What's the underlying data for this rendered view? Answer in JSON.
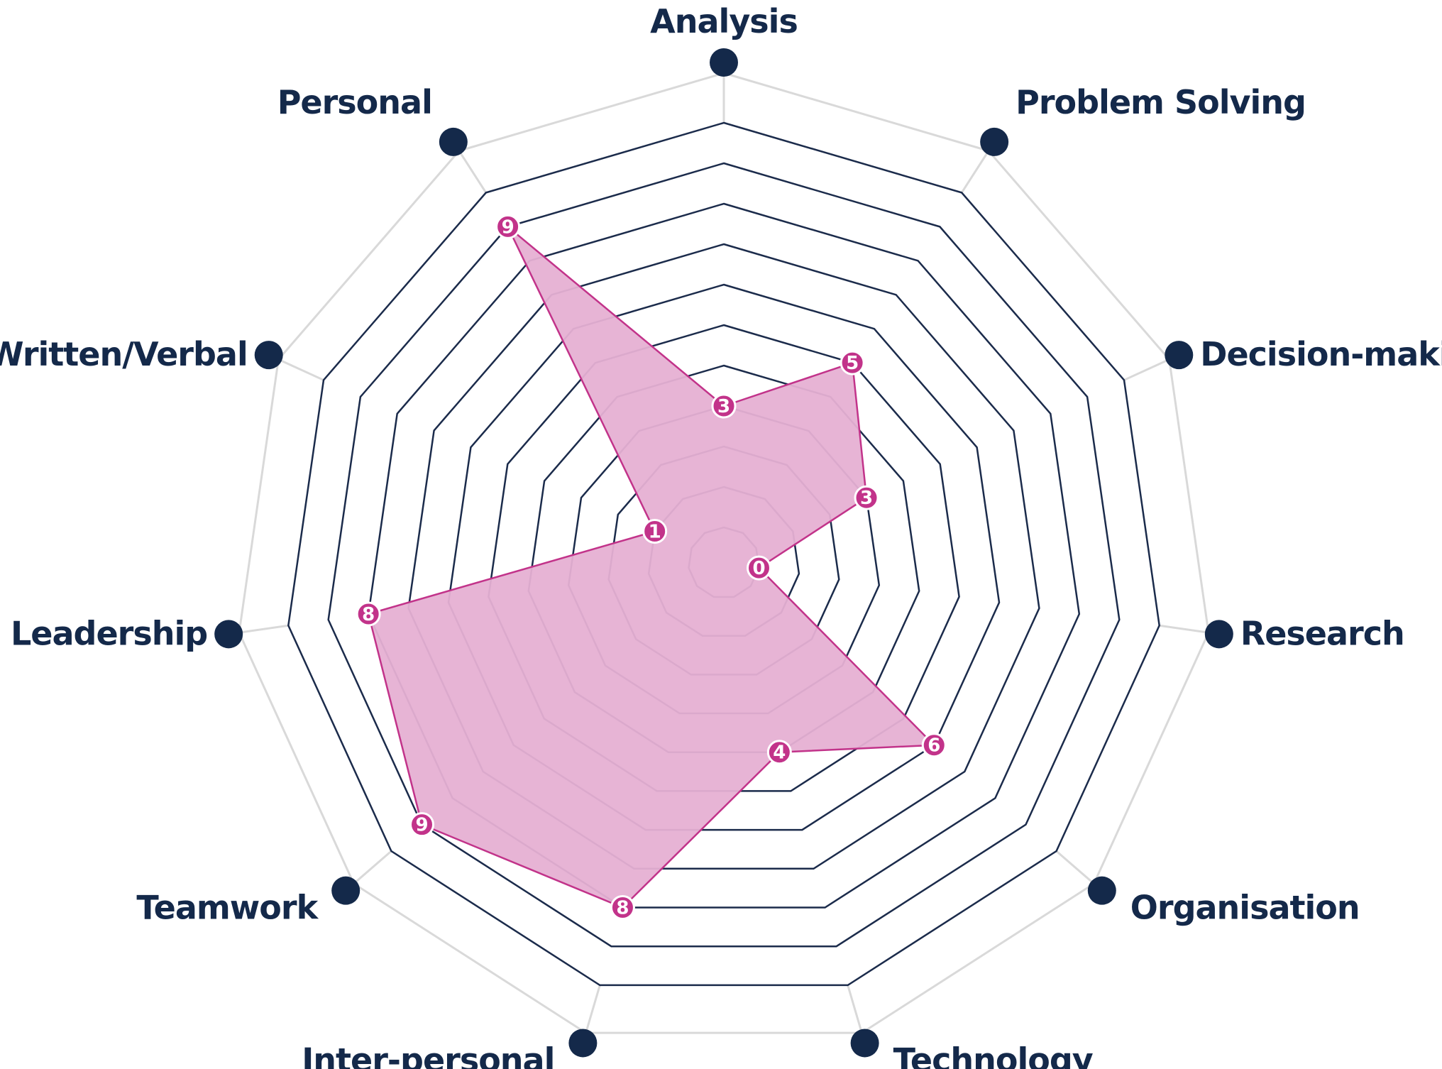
{
  "chart_data": {
    "type": "radar",
    "title": "",
    "categories": [
      "Analysis",
      "Problem Solving",
      "Decision-making",
      "Research",
      "Organisation",
      "Technology",
      "Inter-personal",
      "Teamwork",
      "Leadership",
      "Written/Verbal",
      "Personal"
    ],
    "series": [
      {
        "values": [
          3,
          5,
          3,
          0,
          6,
          4,
          8,
          9,
          8,
          1,
          9
        ]
      }
    ],
    "rlim": [
      0,
      10
    ],
    "rings": 10,
    "colors": {
      "series_fill": "#e6b0d3",
      "series_stroke": "#c2338a",
      "marker_fill": "#c2338a",
      "grid": "#1b2b4b",
      "outer_spoke": "#d9d9d9",
      "axis_dot": "#14294a",
      "label": "#14294a"
    }
  }
}
